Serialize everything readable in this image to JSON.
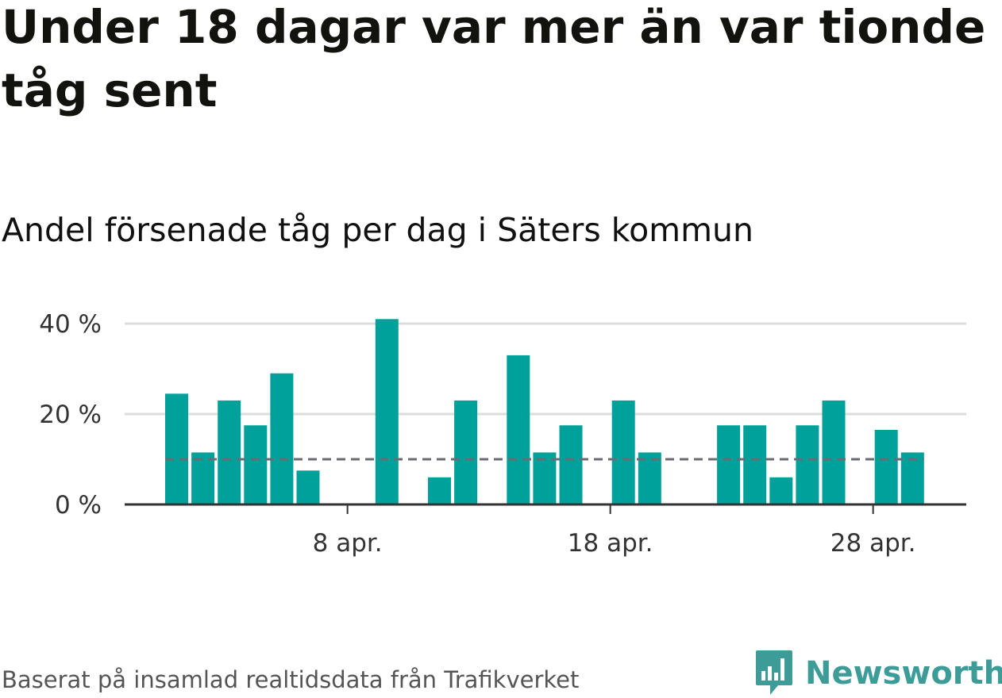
{
  "title": "Under 18 dagar var mer än var tionde tåg sent",
  "subtitle": "Andel försenade tåg per dag i Säters kommun",
  "source": "Baserat på insamlad realtidsdata från Trafikverket",
  "brand": {
    "name": "Newsworthy",
    "color": "#3d9c98"
  },
  "colors": {
    "bar": "#00a19a",
    "reference_line": "#6b6b73",
    "grid": "#dddddd",
    "axis": "#333333"
  },
  "chart_data": {
    "type": "bar",
    "x_start_day": 1,
    "x_end_day": 30,
    "month_label": "apr.",
    "days": [
      1,
      2,
      3,
      4,
      5,
      6,
      7,
      8,
      9,
      10,
      11,
      12,
      13,
      14,
      15,
      16,
      17,
      18,
      19,
      20,
      21,
      22,
      23,
      24,
      25,
      26,
      27,
      28,
      29,
      30
    ],
    "values": [
      24.5,
      11.5,
      23,
      17.5,
      29,
      7.5,
      0,
      0,
      41,
      0,
      6,
      23,
      0,
      33,
      11.5,
      17.5,
      0,
      23,
      11.5,
      0,
      0,
      17.5,
      17.5,
      6,
      17.5,
      23,
      0,
      16.5,
      11.5,
      null
    ],
    "reference_value": 10,
    "ylim": [
      0,
      41
    ],
    "yticks": [
      {
        "value": 0,
        "label": "0 %"
      },
      {
        "value": 20,
        "label": "20 %"
      },
      {
        "value": 40,
        "label": "40 %"
      }
    ],
    "xticks": [
      {
        "day": 8,
        "label": "8 apr."
      },
      {
        "day": 18,
        "label": "18 apr."
      },
      {
        "day": 28,
        "label": "28 apr."
      }
    ],
    "grid": true,
    "xlabel": "",
    "ylabel": ""
  }
}
